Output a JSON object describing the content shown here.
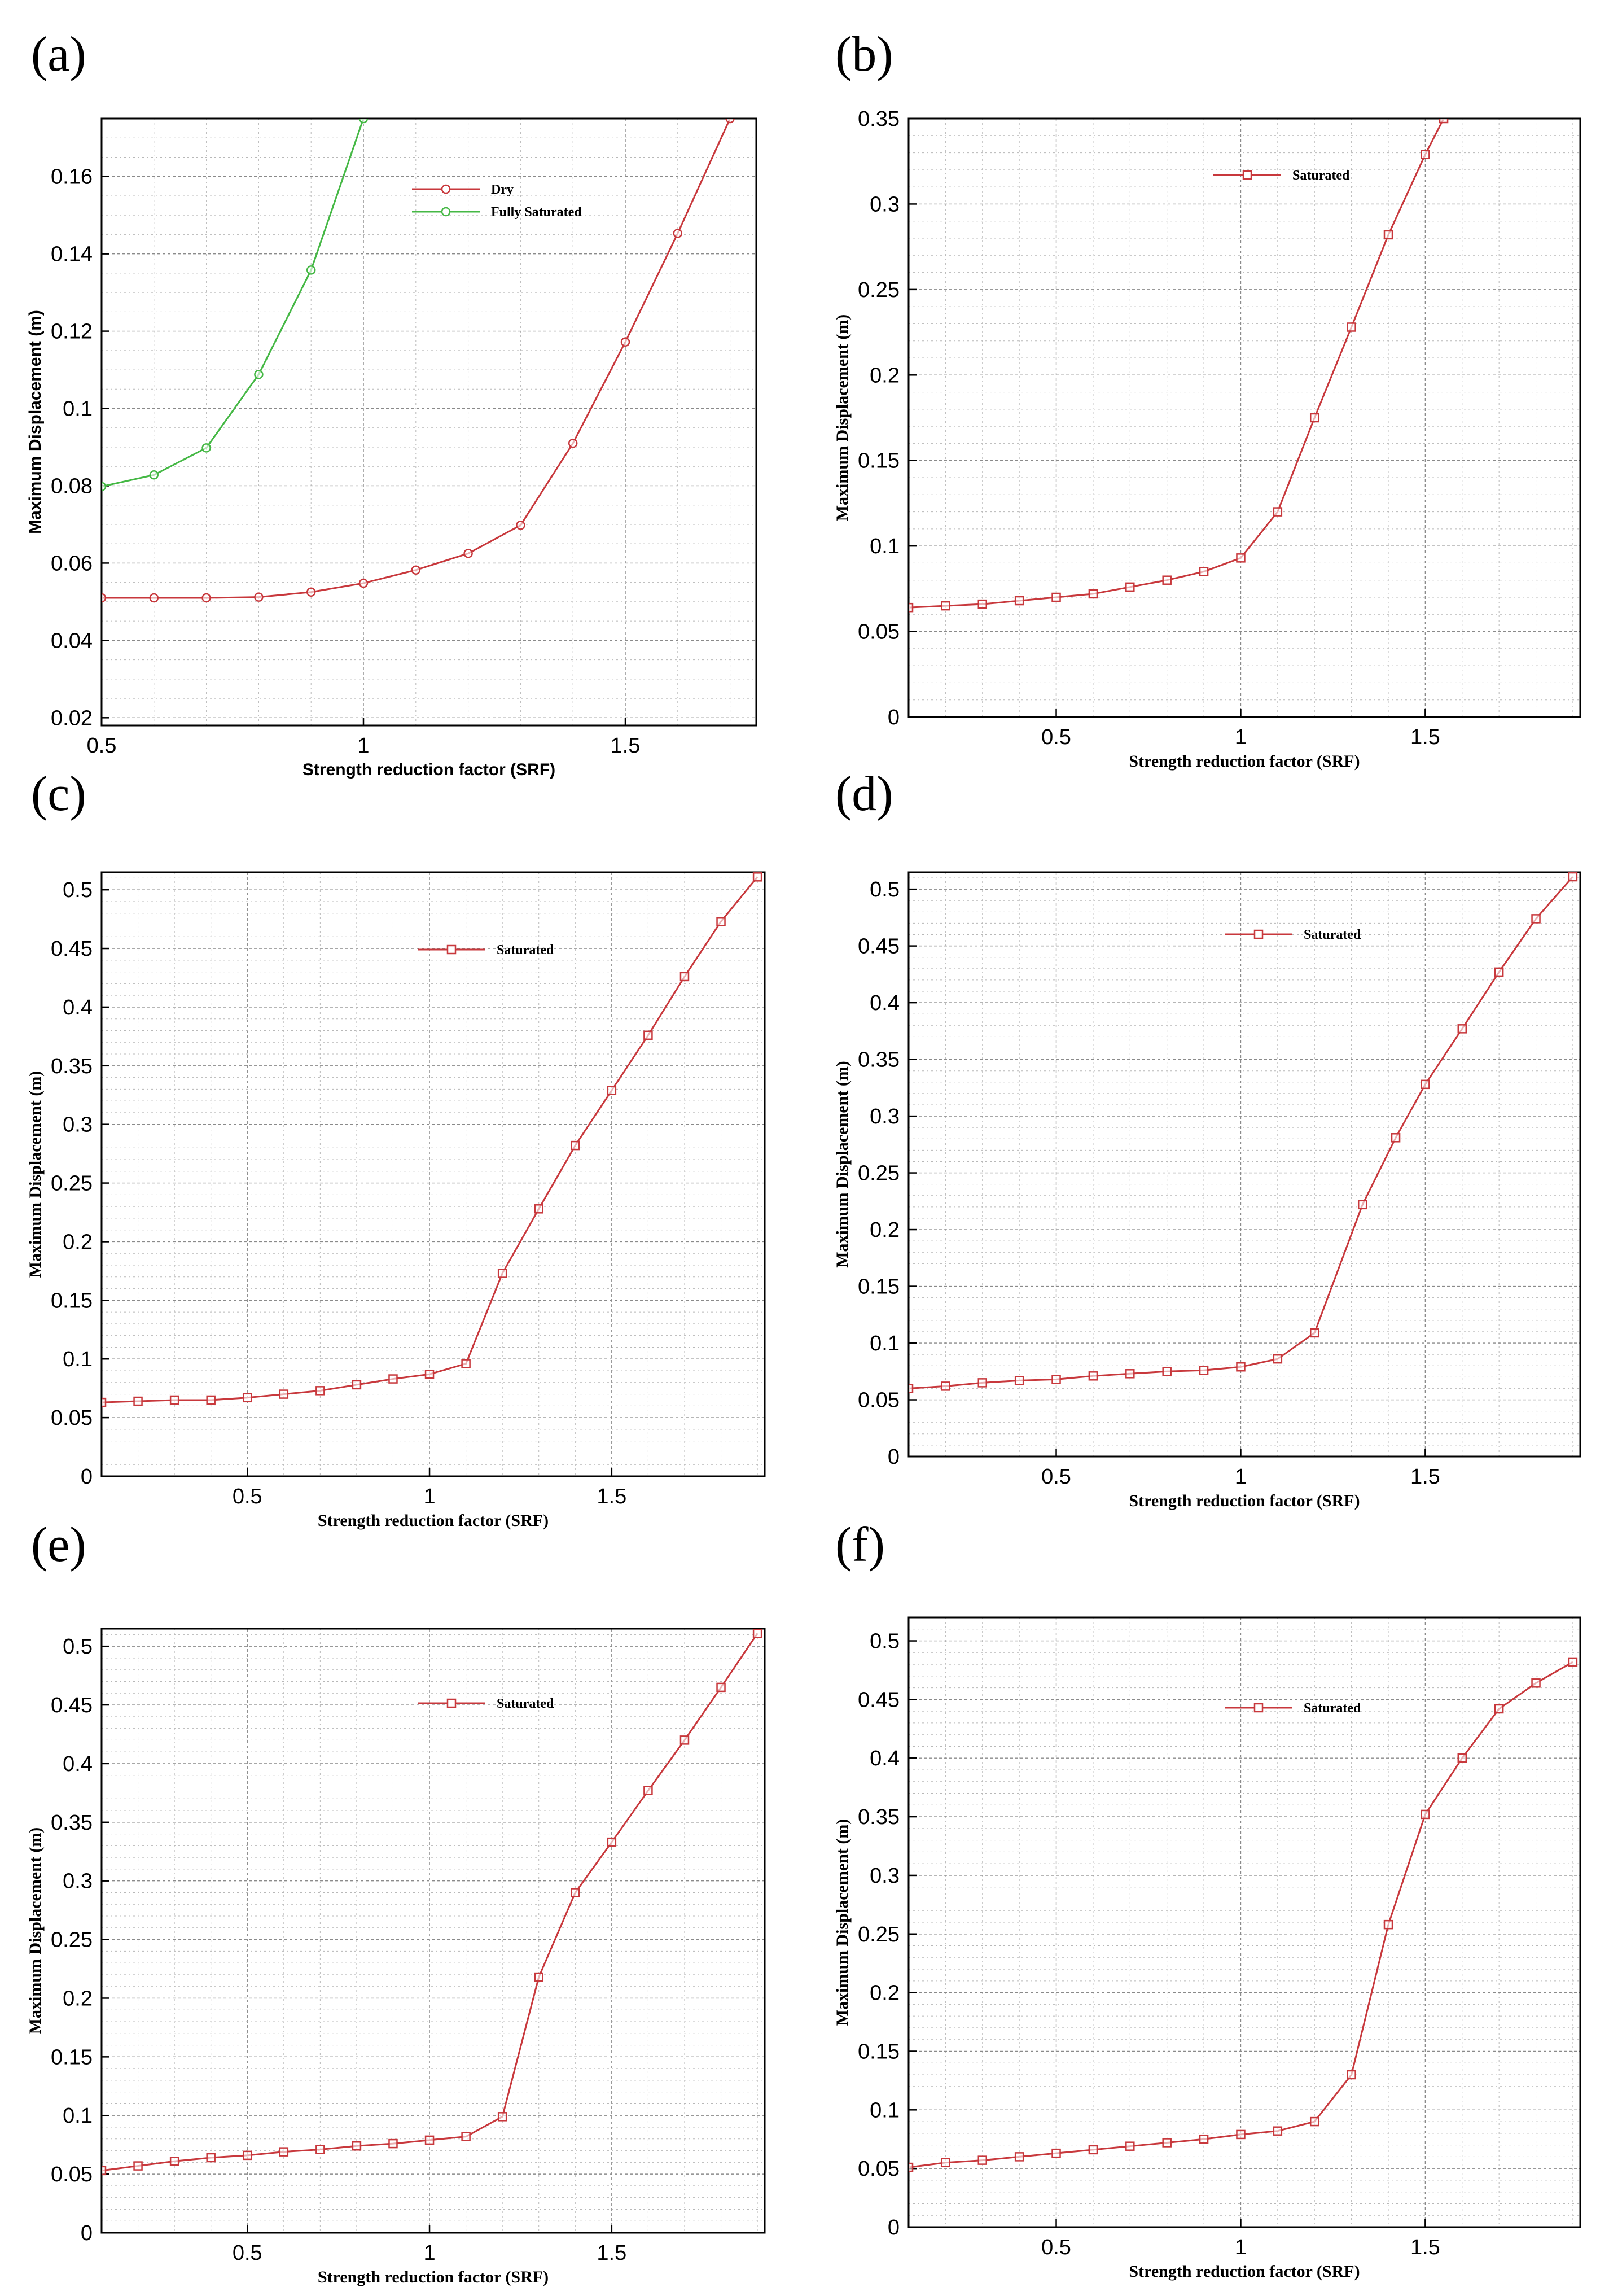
{
  "chart_data": [
    {
      "panel": "(a)",
      "type": "line",
      "title": "",
      "xlabel": "Strength reduction factor (SRF)",
      "ylabel": "Maximum Displacement (m)",
      "xlim": [
        0.5,
        1.75
      ],
      "ylim": [
        0.018,
        0.175
      ],
      "xticks": [
        0.5,
        1,
        1.5
      ],
      "xtick_labels": [
        "0.5",
        "1",
        "1.5"
      ],
      "xminor": 0.1,
      "yticks": [
        0.02,
        0.04,
        0.06,
        0.08,
        0.1,
        0.12,
        0.14,
        0.16
      ],
      "ytick_labels": [
        "0.02",
        "0.04",
        "0.06",
        "0.08",
        "0.1",
        "0.12",
        "0.14",
        "0.16"
      ],
      "yminor": 0.005,
      "legend_position": "top-center",
      "series": [
        {
          "name": "Dry",
          "color": "#c8383c",
          "marker": "circle",
          "x": [
            0.5,
            0.6,
            0.7,
            0.8,
            0.9,
            1.0,
            1.1,
            1.2,
            1.3,
            1.4,
            1.5,
            1.6,
            1.7
          ],
          "y": [
            0.051,
            0.051,
            0.051,
            0.0512,
            0.0525,
            0.0548,
            0.0582,
            0.0625,
            0.0698,
            0.091,
            0.1172,
            0.1453,
            0.175
          ]
        },
        {
          "name": "Fully Saturated",
          "color": "#45b845",
          "marker": "circle",
          "x": [
            0.5,
            0.6,
            0.7,
            0.8,
            0.9,
            1.0
          ],
          "y": [
            0.0798,
            0.0828,
            0.0898,
            0.1088,
            0.1358,
            0.175
          ]
        }
      ]
    },
    {
      "panel": "(b)",
      "type": "line",
      "title": "",
      "xlabel": "Strength reduction factor (SRF)",
      "ylabel": "Maximum Displacement (m)",
      "xlim": [
        0.1,
        1.92
      ],
      "ylim": [
        0,
        0.35
      ],
      "xticks": [
        0.5,
        1,
        1.5
      ],
      "xtick_labels": [
        "0.5",
        "1",
        "1.5"
      ],
      "xminor": 0.1,
      "yticks": [
        0,
        0.05,
        0.1,
        0.15,
        0.2,
        0.25,
        0.3,
        0.35
      ],
      "ytick_labels": [
        "0",
        "0.05",
        "0.1",
        "0.15",
        "0.2",
        "0.25",
        "0.3",
        "0.35"
      ],
      "yminor": 0.01,
      "legend_position": "top-center",
      "series": [
        {
          "name": "Saturated",
          "color": "#c8383c",
          "marker": "square",
          "x": [
            0.1,
            0.2,
            0.3,
            0.4,
            0.5,
            0.6,
            0.7,
            0.8,
            0.9,
            1.0,
            1.1,
            1.2,
            1.3,
            1.4,
            1.5,
            1.55
          ],
          "y": [
            0.064,
            0.065,
            0.066,
            0.068,
            0.07,
            0.072,
            0.076,
            0.08,
            0.085,
            0.093,
            0.12,
            0.175,
            0.228,
            0.282,
            0.329,
            0.35
          ]
        }
      ]
    },
    {
      "panel": "(c)",
      "type": "line",
      "title": "",
      "xlabel": "Strength reduction factor (SRF)",
      "ylabel": "Maximum Displacement (m)",
      "xlim": [
        0.1,
        1.92
      ],
      "ylim": [
        0,
        0.515
      ],
      "xticks": [
        0.5,
        1,
        1.5
      ],
      "xtick_labels": [
        "0.5",
        "1",
        "1.5"
      ],
      "xminor": 0.1,
      "yticks": [
        0,
        0.05,
        0.1,
        0.15,
        0.2,
        0.25,
        0.3,
        0.35,
        0.4,
        0.45,
        0.5
      ],
      "ytick_labels": [
        "0",
        "0.05",
        "0.1",
        "0.15",
        "0.2",
        "0.25",
        "0.3",
        "0.35",
        "0.4",
        "0.45",
        "0.5"
      ],
      "yminor": 0.01,
      "legend_position": "top-center",
      "series": [
        {
          "name": "Saturated",
          "color": "#c8383c",
          "marker": "square",
          "x": [
            0.1,
            0.2,
            0.3,
            0.4,
            0.5,
            0.6,
            0.7,
            0.8,
            0.9,
            1.0,
            1.1,
            1.2,
            1.3,
            1.4,
            1.5,
            1.6,
            1.7,
            1.8,
            1.9
          ],
          "y": [
            0.063,
            0.064,
            0.065,
            0.065,
            0.067,
            0.07,
            0.073,
            0.078,
            0.083,
            0.087,
            0.096,
            0.173,
            0.228,
            0.282,
            0.329,
            0.376,
            0.426,
            0.473,
            0.511
          ]
        }
      ]
    },
    {
      "panel": "(d)",
      "type": "line",
      "title": "",
      "xlabel": "Strength reduction factor (SRF)",
      "ylabel": "Maximum Displacement (m)",
      "xlim": [
        0.1,
        1.92
      ],
      "ylim": [
        0,
        0.515
      ],
      "xticks": [
        0.5,
        1,
        1.5
      ],
      "xtick_labels": [
        "0.5",
        "1",
        "1.5"
      ],
      "xminor": 0.1,
      "yticks": [
        0,
        0.05,
        0.1,
        0.15,
        0.2,
        0.25,
        0.3,
        0.35,
        0.4,
        0.45,
        0.5
      ],
      "ytick_labels": [
        "0",
        "0.05",
        "0.1",
        "0.15",
        "0.2",
        "0.25",
        "0.3",
        "0.35",
        "0.4",
        "0.45",
        "0.5"
      ],
      "yminor": 0.01,
      "legend_position": "top-center",
      "series": [
        {
          "name": "Saturated",
          "color": "#c8383c",
          "marker": "square",
          "x": [
            0.1,
            0.2,
            0.3,
            0.4,
            0.5,
            0.6,
            0.7,
            0.8,
            0.9,
            1.0,
            1.1,
            1.2,
            1.33,
            1.42,
            1.5,
            1.6,
            1.7,
            1.8,
            1.9
          ],
          "y": [
            0.06,
            0.062,
            0.065,
            0.067,
            0.068,
            0.071,
            0.073,
            0.075,
            0.076,
            0.079,
            0.086,
            0.109,
            0.222,
            0.281,
            0.328,
            0.377,
            0.427,
            0.474,
            0.511
          ]
        }
      ]
    },
    {
      "panel": "(e)",
      "type": "line",
      "title": "",
      "xlabel": "Strength reduction factor (SRF)",
      "ylabel": "Maximum Displacement (m)",
      "xlim": [
        0.1,
        1.92
      ],
      "ylim": [
        0,
        0.515
      ],
      "xticks": [
        0.5,
        1,
        1.5
      ],
      "xtick_labels": [
        "0.5",
        "1",
        "1.5"
      ],
      "xminor": 0.1,
      "yticks": [
        0,
        0.05,
        0.1,
        0.15,
        0.2,
        0.25,
        0.3,
        0.35,
        0.4,
        0.45,
        0.5
      ],
      "ytick_labels": [
        "0",
        "0.05",
        "0.1",
        "0.15",
        "0.2",
        "0.25",
        "0.3",
        "0.35",
        "0.4",
        "0.45",
        "0.5"
      ],
      "yminor": 0.01,
      "legend_position": "top-center",
      "series": [
        {
          "name": "Saturated",
          "color": "#c8383c",
          "marker": "square",
          "x": [
            0.1,
            0.2,
            0.3,
            0.4,
            0.5,
            0.6,
            0.7,
            0.8,
            0.9,
            1.0,
            1.1,
            1.2,
            1.3,
            1.4,
            1.5,
            1.6,
            1.7,
            1.8,
            1.9
          ],
          "y": [
            0.053,
            0.057,
            0.061,
            0.064,
            0.066,
            0.069,
            0.071,
            0.074,
            0.076,
            0.079,
            0.082,
            0.099,
            0.218,
            0.29,
            0.333,
            0.377,
            0.42,
            0.465,
            0.511
          ]
        }
      ]
    },
    {
      "panel": "(f)",
      "type": "line",
      "title": "",
      "xlabel": "Strength reduction factor (SRF)",
      "ylabel": "Maximum Displacement (m)",
      "xlim": [
        0.1,
        1.92
      ],
      "ylim": [
        0,
        0.52
      ],
      "xticks": [
        0.5,
        1,
        1.5
      ],
      "xtick_labels": [
        "0.5",
        "1",
        "1.5"
      ],
      "xminor": 0.1,
      "yticks": [
        0,
        0.05,
        0.1,
        0.15,
        0.2,
        0.25,
        0.3,
        0.35,
        0.4,
        0.45,
        0.5
      ],
      "ytick_labels": [
        "0",
        "0.05",
        "0.1",
        "0.15",
        "0.2",
        "0.25",
        "0.3",
        "0.35",
        "0.4",
        "0.45",
        "0.5"
      ],
      "yminor": 0.01,
      "legend_position": "top-center",
      "series": [
        {
          "name": "Saturated",
          "color": "#c8383c",
          "marker": "square",
          "x": [
            0.1,
            0.2,
            0.3,
            0.4,
            0.5,
            0.6,
            0.7,
            0.8,
            0.9,
            1.0,
            1.1,
            1.2,
            1.3,
            1.4,
            1.5,
            1.6,
            1.7,
            1.8,
            1.9
          ],
          "y": [
            0.051,
            0.055,
            0.057,
            0.06,
            0.063,
            0.066,
            0.069,
            0.072,
            0.075,
            0.079,
            0.082,
            0.09,
            0.13,
            0.258,
            0.352,
            0.4,
            0.442,
            0.464,
            0.482
          ]
        }
      ]
    }
  ]
}
